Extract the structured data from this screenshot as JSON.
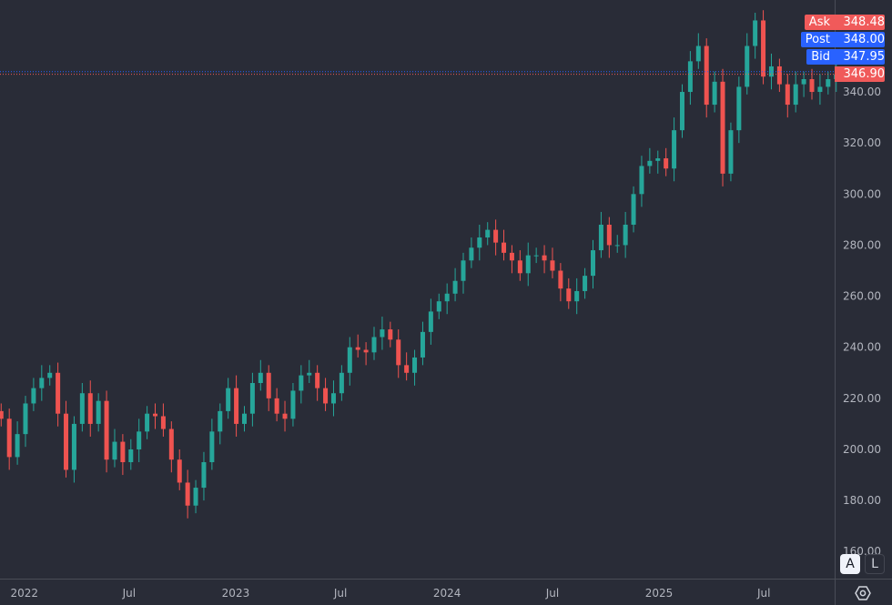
{
  "chart_data": {
    "type": "candlestick",
    "interval_days": 14,
    "first_date": "2021-11-22",
    "close": [
      212,
      197,
      206,
      218,
      224,
      228,
      230,
      214,
      192,
      210,
      222,
      210,
      219,
      196,
      203,
      195,
      200,
      207,
      214,
      213,
      208,
      196,
      187,
      178,
      185,
      195,
      207,
      215,
      224,
      210,
      214,
      226,
      230,
      220,
      214,
      212,
      223,
      229,
      230,
      224,
      218,
      222,
      230,
      240,
      239,
      238,
      244,
      247,
      243,
      233,
      230,
      236,
      246,
      254,
      258,
      261,
      266,
      274,
      279,
      283,
      286,
      281,
      277,
      274,
      269,
      276,
      276,
      274,
      270,
      263,
      258,
      262,
      268,
      278,
      288,
      280,
      280,
      288,
      300,
      311,
      313,
      314,
      310,
      325,
      340,
      352,
      358,
      335,
      344,
      308,
      325,
      342,
      358,
      368,
      346,
      350,
      343,
      335,
      343,
      345,
      340,
      342,
      345,
      346.9
    ],
    "first_open": 215,
    "ylim": [
      149.4,
      376
    ],
    "y_ticks": [
      "160.00",
      "180.00",
      "200.00",
      "220.00",
      "240.00",
      "260.00",
      "280.00",
      "300.00",
      "320.00",
      "340.00"
    ],
    "y_tick_values": [
      160,
      180,
      200,
      220,
      240,
      260,
      280,
      300,
      320,
      340
    ],
    "x_ticks": [
      "2022",
      "Jul",
      "2023",
      "Jul",
      "2024",
      "Jul",
      "2025",
      "Jul"
    ],
    "x_tick_dates": [
      "2022-01-01",
      "2022-07-01",
      "2023-01-01",
      "2023-07-01",
      "2024-01-01",
      "2024-07-01",
      "2025-01-01",
      "2025-07-01"
    ],
    "xlim": [
      "2021-11-20",
      "2025-11-05"
    ],
    "grid": false,
    "colors": {
      "up": "#26a69a",
      "down": "#ef5350",
      "background": "#292c37",
      "ask": "#f05a5a",
      "bid": "#2962ff"
    },
    "price_tags": [
      {
        "label": "Ask",
        "value": "348.48",
        "price": 348.48,
        "color": "#f05a5a"
      },
      {
        "label": "Post",
        "value": "348.00",
        "price": 348.0,
        "color": "#2962ff"
      },
      {
        "label": "Bid",
        "value": "347.95",
        "price": 347.95,
        "color": "#2962ff"
      },
      {
        "label": "",
        "value": "346.90",
        "price": 346.9,
        "color": "#f05a5a"
      }
    ]
  },
  "controls": {
    "auto_label": "A",
    "log_label": "L",
    "settings_icon": "hexagon-gear-icon"
  }
}
